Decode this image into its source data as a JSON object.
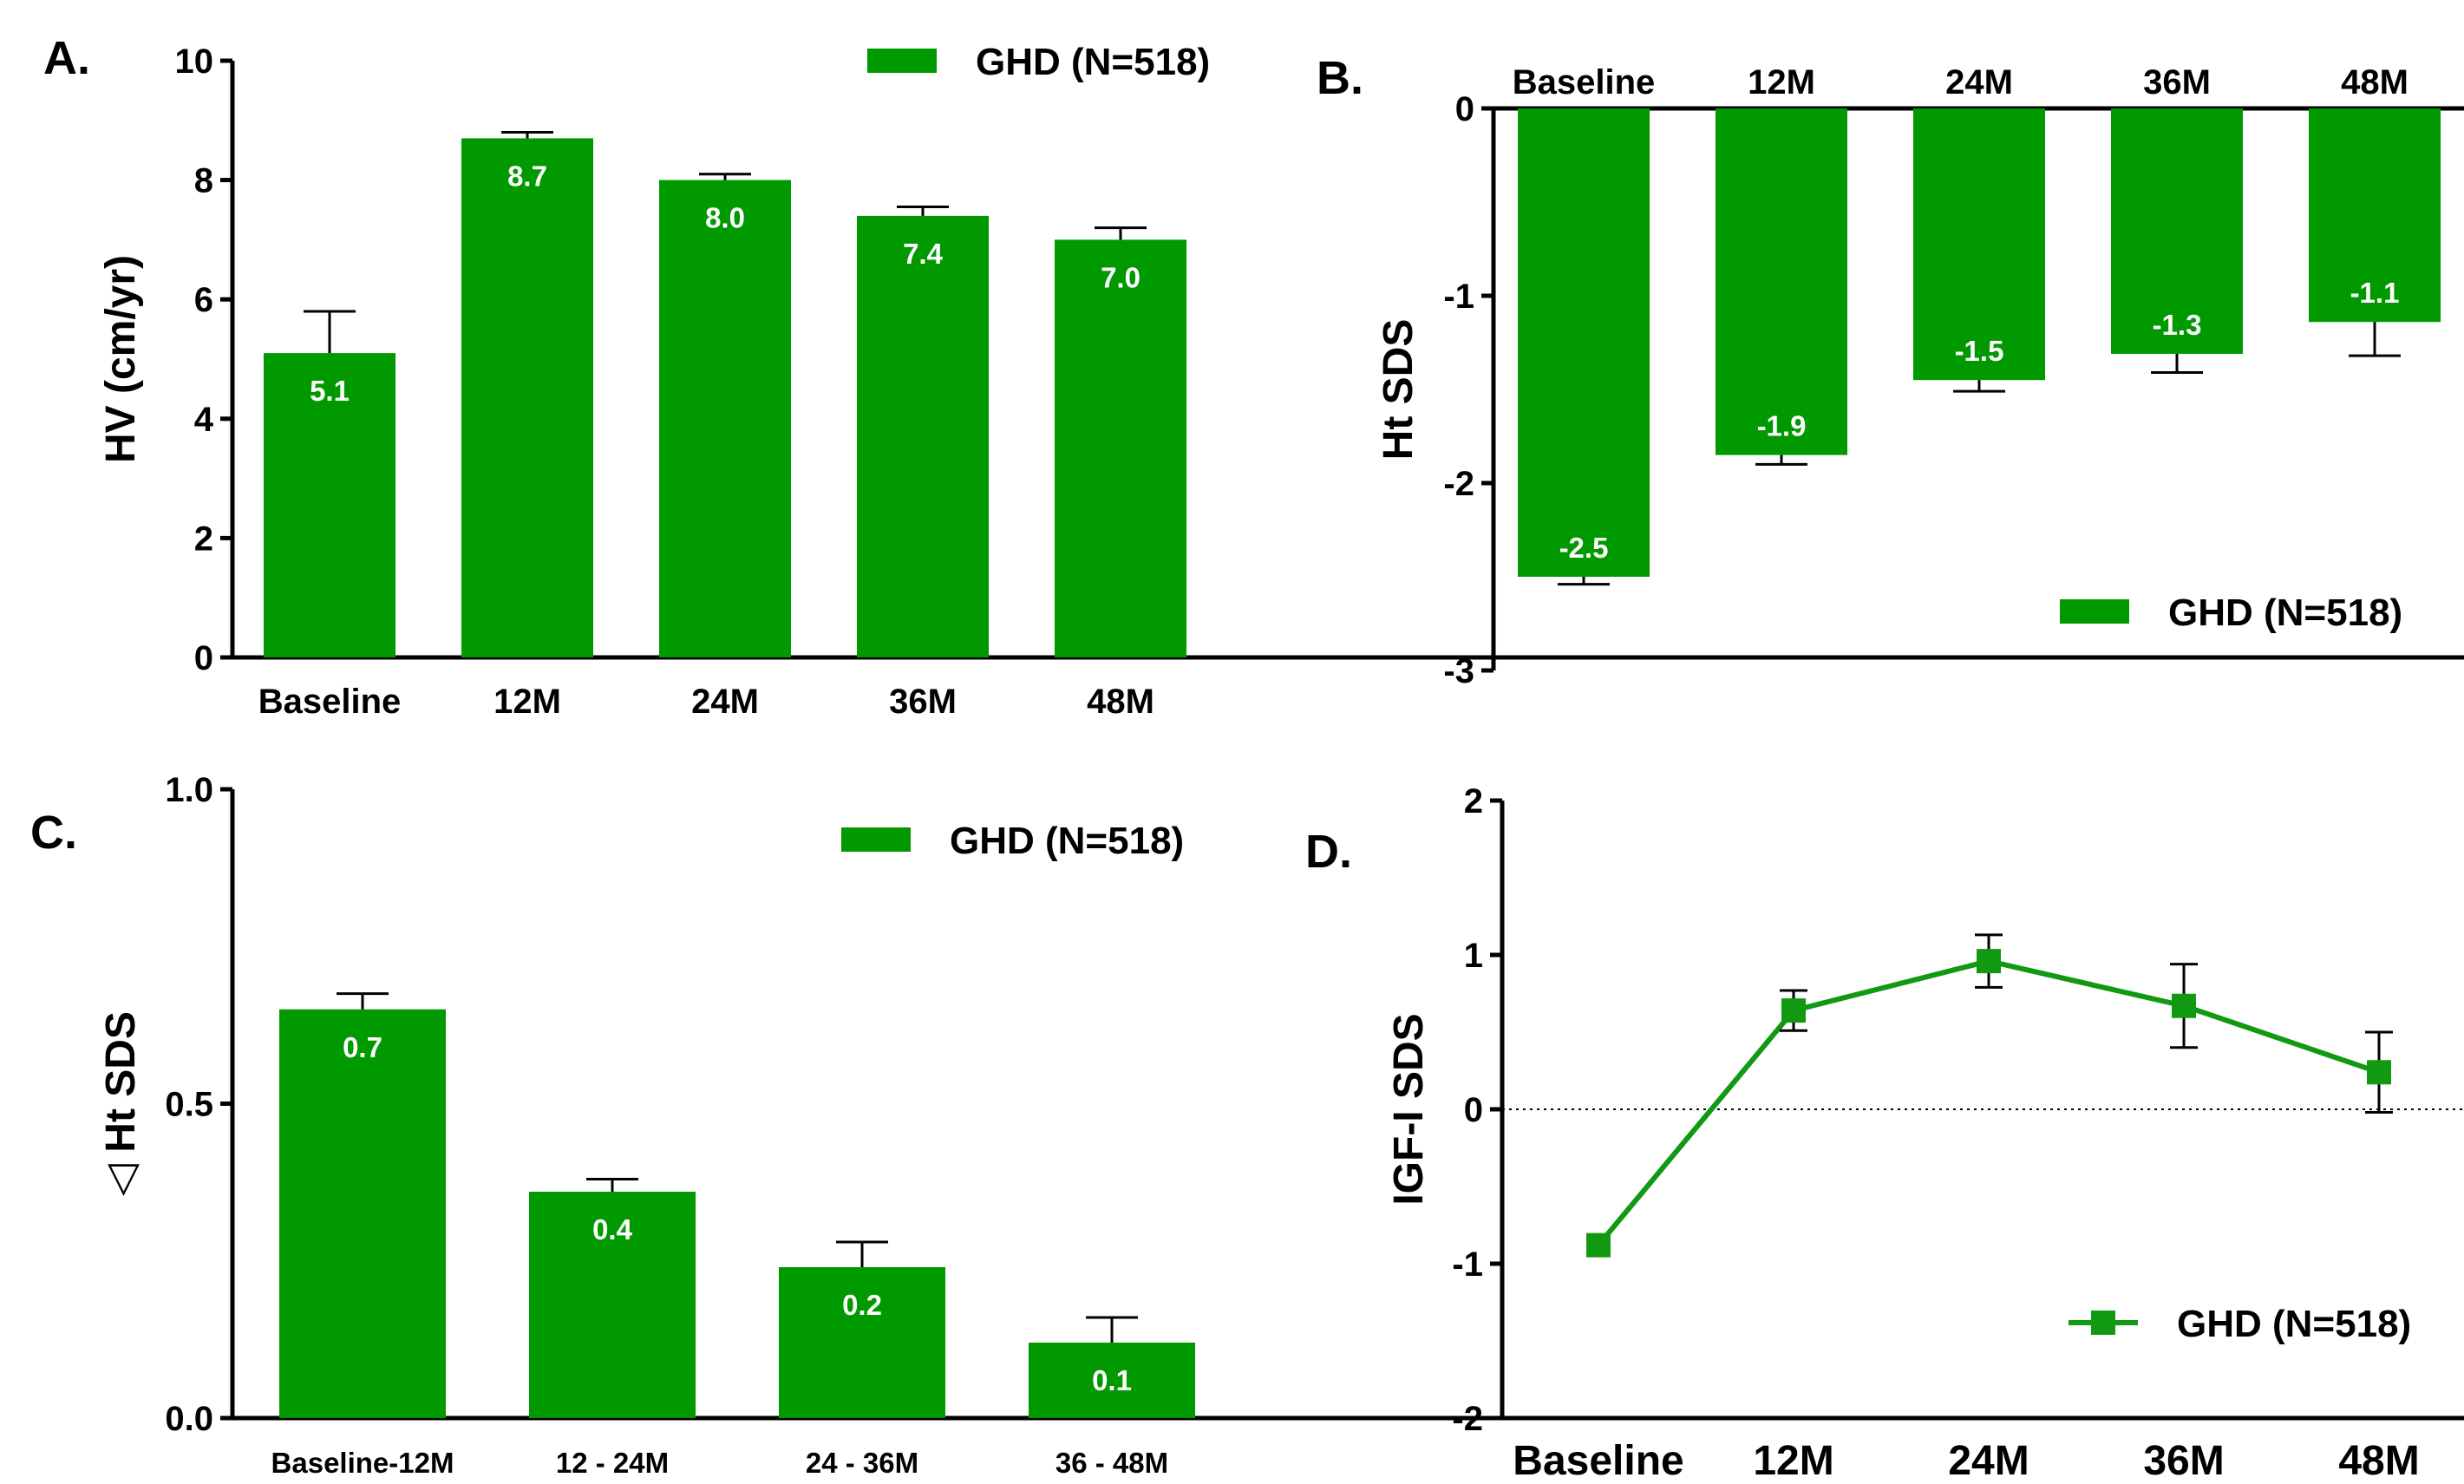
{
  "panels": {
    "A": {
      "letter": "A.",
      "chart_data": {
        "type": "bar",
        "categories": [
          "Baseline",
          "12M",
          "24M",
          "36M",
          "48M"
        ],
        "values": [
          5.1,
          8.7,
          8.0,
          7.4,
          7.0
        ],
        "value_labels": [
          "5.1",
          "8.7",
          "8.0",
          "7.4",
          "7.0"
        ],
        "errors": [
          0.7,
          0.1,
          0.1,
          0.15,
          0.2
        ],
        "ylabel": "HV (cm/yr)",
        "ylim": [
          0,
          10
        ],
        "yticks": [
          0,
          2,
          4,
          6,
          8,
          10
        ],
        "ytick_labels": [
          "0",
          "2",
          "4",
          "6",
          "8",
          "10"
        ],
        "legend": "GHD (N=518)",
        "legend_position": "top-right",
        "color": "#009900"
      }
    },
    "B": {
      "letter": "B.",
      "chart_data": {
        "type": "bar",
        "categories": [
          "Baseline",
          "12M",
          "24M",
          "36M",
          "48M"
        ],
        "values": [
          -2.5,
          -1.85,
          -1.45,
          -1.31,
          -1.14
        ],
        "value_labels": [
          "-2.5",
          "-1.9",
          "-1.5",
          "-1.3",
          "-1.1"
        ],
        "errors": [
          0.04,
          0.05,
          0.06,
          0.1,
          0.18
        ],
        "ylabel": "Ht SDS",
        "ylim": [
          -3,
          0
        ],
        "yticks": [
          -3,
          -2,
          -1,
          0
        ],
        "ytick_labels": [
          "-3",
          "-2",
          "-1",
          "0"
        ],
        "xaxis_position": "top",
        "legend": "GHD (N=518)",
        "legend_position": "bottom-right",
        "color": "#009900"
      }
    },
    "C": {
      "letter": "C.",
      "chart_data": {
        "type": "bar",
        "categories": [
          "Baseline-12M",
          "12 - 24M",
          "24 - 36M",
          "36 - 48M"
        ],
        "values": [
          0.65,
          0.36,
          0.24,
          0.12
        ],
        "value_labels": [
          "0.7",
          "0.4",
          "0.2",
          "0.1"
        ],
        "errors": [
          0.025,
          0.02,
          0.04,
          0.04
        ],
        "ylabel": "◁ Ht SDS",
        "ylim": [
          0,
          1.0
        ],
        "yticks": [
          0,
          0.5,
          1.0
        ],
        "ytick_labels": [
          "0.0",
          "0.5",
          "1.0"
        ],
        "legend": "GHD (N=518)",
        "legend_position": "top-right",
        "color": "#009900"
      }
    },
    "D": {
      "letter": "D.",
      "chart_data": {
        "type": "line",
        "categories": [
          "Baseline",
          "12M",
          "24M",
          "36M",
          "48M"
        ],
        "values": [
          -0.88,
          0.64,
          0.96,
          0.67,
          0.24
        ],
        "errors": [
          0,
          0.13,
          0.17,
          0.27,
          0.26
        ],
        "ylabel": "IGF-I  SDS",
        "ylim": [
          -2,
          2
        ],
        "yticks": [
          -2,
          -1,
          0,
          1,
          2
        ],
        "ytick_labels": [
          "-2",
          "-1",
          "0",
          "1",
          "2"
        ],
        "reference_line": 0,
        "legend": "GHD (N=518)",
        "legend_position": "bottom-right",
        "marker": "square",
        "color": "#119911"
      }
    }
  }
}
